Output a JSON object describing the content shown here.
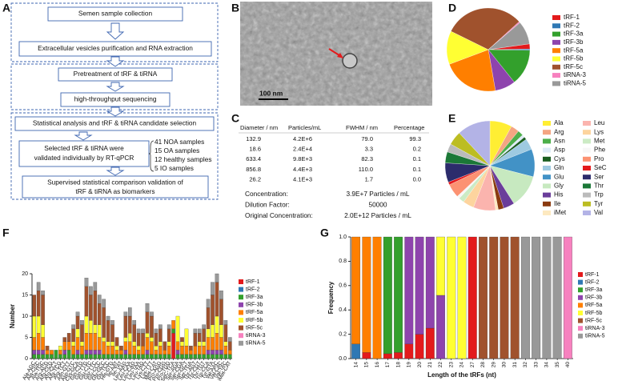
{
  "panel_labels": [
    "A",
    "B",
    "C",
    "D",
    "E",
    "F",
    "G"
  ],
  "flowchart": {
    "steps": [
      "Semen sample collection",
      "Extracellular vesicles purification and RNA extraction",
      "Pretreatment of tRF & tiRNA",
      "high-throughput sequencing",
      "Statistical analysis and tRF & tiRNA candidate selection"
    ],
    "validation": [
      "Selected tRF & tiRNA were",
      "validated individually  by RT-qPCR"
    ],
    "samples": [
      "41 NOA samples",
      "15 OA samples",
      "12 healthy samples",
      "5 IO samples"
    ],
    "conclusion": [
      "Supervised statistical comparison validation of",
      "tRF & tiRNA as biomarkers"
    ]
  },
  "micrograph": {
    "scale_bar": "100 nm"
  },
  "table": {
    "header": [
      "Diameter / nm",
      "Particles/mL",
      "FWHM / nm",
      "Percentage"
    ],
    "rows": [
      [
        "132.9",
        "4.2E+6",
        "79.0",
        "99.3"
      ],
      [
        "18.6",
        "2.4E+4",
        "3.3",
        "0.2"
      ],
      [
        "633.4",
        "9.8E+3",
        "82.3",
        "0.1"
      ],
      [
        "856.8",
        "4.4E+3",
        "110.0",
        "0.1"
      ],
      [
        "26.2",
        "4.1E+3",
        "1.7",
        "0.0"
      ]
    ],
    "summary": [
      [
        "Concentration:",
        "3.9E+7 Particles / mL"
      ],
      [
        "Dilution Factor:",
        "50000"
      ],
      [
        "Original Concentration:",
        "2.0E+12 Particles / mL"
      ]
    ]
  },
  "chart_data": [
    {
      "type": "pie",
      "categories": [
        "tRF-1",
        "tRF-2",
        "tRF-3a",
        "tRF-3b",
        "tRF-5a",
        "tRF-5b",
        "tRF-5c",
        "tiRNA-3",
        "tiRNA-5"
      ],
      "values": [
        2,
        0.5,
        14,
        8,
        22,
        13,
        31,
        0.5,
        9
      ],
      "colors": [
        "#e31a1c",
        "#2f78b4",
        "#33a02c",
        "#8e44ad",
        "#ff7f00",
        "#ffff33",
        "#a0522d",
        "#f781bf",
        "#999999"
      ]
    },
    {
      "type": "pie",
      "categories": [
        "Ala",
        "Arg",
        "Asn",
        "Asp",
        "Cys",
        "Gln",
        "Glu",
        "Gly",
        "His",
        "Ile",
        "iMet",
        "Leu",
        "Lys",
        "Met",
        "Phe",
        "Pro",
        "SeC",
        "Ser",
        "Thr",
        "Trp",
        "Tyr",
        "Val"
      ],
      "values": [
        8,
        3,
        2,
        1,
        1,
        4,
        10,
        12,
        4,
        2,
        1,
        8,
        4,
        2,
        1,
        5,
        1,
        7,
        4,
        3,
        5,
        12
      ],
      "colors": [
        "#ffee33",
        "#f4a582",
        "#4daf4a",
        "#deebf7",
        "#1b5e20",
        "#9ecae1",
        "#4292c6",
        "#c7e9c0",
        "#6a3d9a",
        "#8b3a0f",
        "#fde9c0",
        "#fbb4ae",
        "#fdd49e",
        "#ccebc5",
        "#f7f7f7",
        "#fc9272",
        "#e41a1c",
        "#2c2c6c",
        "#1b7837",
        "#bbbbbb",
        "#bcbd22",
        "#b3b3e6"
      ]
    },
    {
      "type": "bar",
      "stacked": true,
      "y_label": "Number",
      "categories": [
        "Ala-AGC",
        "Ala-CGC",
        "Ala-TGC",
        "Arg-ACG",
        "Arg-CCG",
        "Arg-CCT",
        "Arg-TCG",
        "Arg-TCT",
        "Asn-GTT",
        "Asp-GTC",
        "Cys-GCA",
        "Gln-CTG",
        "Gln-TTG",
        "Glu-CTC",
        "Glu-TTC",
        "Gly-CCC",
        "Gly-GCC",
        "Gly-TCC",
        "His-GTG",
        "Ile-AAT",
        "Ile-TAT",
        "Leu-AAG",
        "Leu-CAA",
        "Leu-CAG",
        "Leu-TAA",
        "Leu-TAG",
        "Lys-CTT",
        "Lys-TTT",
        "Met-CAT",
        "Pro-AGG",
        "Pro-CGG",
        "Pro-TGG",
        "SeC-TCA",
        "Ser-AGA",
        "Ser-CGA",
        "Ser-GCT",
        "Ser-TGA",
        "Thr-AGT",
        "Thr-CGT",
        "Thr-TGT",
        "Trp-CCA",
        "Tyr-GTA",
        "Val-AAC",
        "Val-CAC",
        "Val-TAC",
        "iMet-CAT"
      ],
      "series": [
        {
          "name": "tRF-1",
          "color": "#e31a1c",
          "values": [
            0,
            0,
            0,
            0,
            0,
            0,
            0,
            0,
            0,
            0,
            0,
            0,
            0,
            0,
            0,
            0,
            0,
            0,
            0,
            0,
            0,
            0,
            0,
            0,
            0,
            0,
            0,
            0,
            0,
            0,
            0,
            0,
            6,
            0,
            0,
            0,
            0,
            0,
            0,
            0,
            0,
            0,
            0,
            0,
            0,
            0
          ]
        },
        {
          "name": "tRF-2",
          "color": "#2f78b4",
          "values": [
            0,
            0,
            0,
            0,
            0,
            0,
            0,
            0,
            0,
            0,
            0,
            0,
            0,
            0,
            0,
            0,
            0,
            0,
            0,
            0,
            0,
            0,
            0,
            0,
            0,
            0,
            0,
            0,
            0,
            0,
            0,
            0,
            0,
            0,
            0,
            0,
            0,
            0,
            0,
            0,
            0,
            0,
            0,
            0,
            0,
            0
          ]
        },
        {
          "name": "tRF-3a",
          "color": "#33a02c",
          "values": [
            1,
            1,
            1,
            1,
            1,
            2,
            1,
            1,
            2,
            1,
            1,
            1,
            1,
            1,
            1,
            1,
            1,
            1,
            1,
            1,
            1,
            1,
            1,
            1,
            1,
            1,
            1,
            1,
            1,
            1,
            1,
            1,
            1,
            1,
            1,
            1,
            1,
            1,
            1,
            1,
            1,
            1,
            1,
            1,
            1,
            1
          ]
        },
        {
          "name": "tRF-3b",
          "color": "#8e44ad",
          "values": [
            1,
            1,
            1,
            0,
            0,
            0,
            0,
            1,
            0,
            0,
            1,
            0,
            1,
            1,
            1,
            1,
            0,
            0,
            0,
            0,
            0,
            1,
            0,
            0,
            0,
            0,
            1,
            0,
            0,
            0,
            0,
            0,
            0,
            1,
            0,
            0,
            0,
            0,
            0,
            0,
            1,
            1,
            1,
            1,
            0,
            0
          ]
        },
        {
          "name": "tRF-5a",
          "color": "#ff7f00",
          "values": [
            3,
            4,
            3,
            1,
            1,
            0,
            1,
            2,
            2,
            2,
            3,
            2,
            4,
            4,
            4,
            3,
            3,
            2,
            2,
            1,
            1,
            2,
            3,
            2,
            1,
            2,
            3,
            3,
            1,
            2,
            1,
            2,
            2,
            2,
            2,
            2,
            1,
            2,
            2,
            2,
            3,
            3,
            4,
            3,
            2,
            1
          ]
        },
        {
          "name": "tRF-5b",
          "color": "#ffff33",
          "values": [
            5,
            4,
            3,
            0,
            0,
            0,
            1,
            0,
            0,
            1,
            2,
            1,
            4,
            3,
            2,
            3,
            1,
            1,
            1,
            1,
            0,
            1,
            2,
            1,
            1,
            0,
            1,
            1,
            1,
            1,
            0,
            1,
            0,
            6,
            1,
            4,
            0,
            0,
            1,
            1,
            2,
            3,
            4,
            3,
            1,
            0
          ]
        },
        {
          "name": "tRF-5c",
          "color": "#a0522d",
          "values": [
            5,
            6,
            7,
            1,
            0,
            0,
            0,
            1,
            2,
            3,
            3,
            4,
            7,
            6,
            8,
            5,
            7,
            5,
            4,
            2,
            1,
            5,
            4,
            4,
            3,
            3,
            5,
            5,
            3,
            3,
            2,
            3,
            0,
            0,
            1,
            0,
            1,
            3,
            2,
            3,
            5,
            7,
            8,
            6,
            4,
            2
          ]
        },
        {
          "name": "tiRNA-3",
          "color": "#f781bf",
          "values": [
            0,
            0,
            0,
            0,
            0,
            0,
            0,
            0,
            0,
            0,
            0,
            0,
            0,
            0,
            0,
            0,
            0,
            0,
            0,
            0,
            0,
            0,
            0,
            0,
            0,
            0,
            0,
            0,
            0,
            0,
            0,
            0,
            0,
            0,
            0,
            0,
            0,
            0,
            0,
            0,
            0,
            0,
            0,
            0,
            0,
            0
          ]
        },
        {
          "name": "tiRNA-5",
          "color": "#999999",
          "values": [
            0,
            2,
            1,
            0,
            0,
            0,
            0,
            0,
            0,
            1,
            1,
            1,
            2,
            2,
            2,
            2,
            2,
            1,
            1,
            0,
            0,
            1,
            2,
            1,
            1,
            1,
            2,
            1,
            1,
            1,
            0,
            1,
            0,
            0,
            0,
            0,
            0,
            1,
            1,
            1,
            2,
            3,
            2,
            2,
            1,
            1
          ]
        }
      ],
      "ylim": [
        0,
        20
      ],
      "yticks": [
        0,
        5,
        10,
        15,
        20
      ],
      "legend": "right"
    },
    {
      "type": "bar",
      "stacked": true,
      "x_label": "Length of the tRFs (nt)",
      "y_label": "Frequency",
      "categories": [
        "14",
        "15",
        "16",
        "17",
        "18",
        "19",
        "20",
        "21",
        "22",
        "23",
        "24",
        "27",
        "28",
        "29",
        "30",
        "31",
        "32",
        "33",
        "34",
        "35",
        "40"
      ],
      "series": [
        {
          "name": "tRF-1",
          "color": "#e31a1c",
          "values": [
            0,
            0.05,
            0,
            0.04,
            0.05,
            0.12,
            0.2,
            0.25,
            0,
            0,
            0,
            1,
            0,
            0,
            0,
            0,
            0,
            0,
            0,
            0,
            0
          ]
        },
        {
          "name": "tRF-2",
          "color": "#2f78b4",
          "values": [
            0.12,
            0,
            0,
            0,
            0,
            0,
            0,
            0,
            0,
            0,
            0,
            0,
            0,
            0,
            0,
            0,
            0,
            0,
            0,
            0,
            0
          ]
        },
        {
          "name": "tRF-3a",
          "color": "#33a02c",
          "values": [
            0,
            0,
            0,
            0.96,
            0.95,
            0,
            0,
            0,
            0,
            0,
            0,
            0,
            0,
            0,
            0,
            0,
            0,
            0,
            0,
            0,
            0
          ]
        },
        {
          "name": "tRF-3b",
          "color": "#8e44ad",
          "values": [
            0,
            0,
            0,
            0,
            0,
            0.88,
            0.8,
            0.75,
            0.52,
            0,
            0,
            0,
            0,
            0,
            0,
            0,
            0,
            0,
            0,
            0,
            0
          ]
        },
        {
          "name": "tRF-5a",
          "color": "#ff7f00",
          "values": [
            0.88,
            0.95,
            1,
            0,
            0,
            0,
            0,
            0,
            0,
            0,
            0,
            0,
            0,
            0,
            0,
            0,
            0,
            0,
            0,
            0,
            0
          ]
        },
        {
          "name": "tRF-5b",
          "color": "#ffff33",
          "values": [
            0,
            0,
            0,
            0,
            0,
            0,
            0,
            0,
            0.48,
            1,
            1,
            0,
            0,
            0,
            0,
            0,
            0,
            0,
            0,
            0,
            0
          ]
        },
        {
          "name": "tRF-5c",
          "color": "#a0522d",
          "values": [
            0,
            0,
            0,
            0,
            0,
            0,
            0,
            0,
            0,
            0,
            0,
            0,
            1,
            1,
            1,
            1,
            0,
            0,
            0,
            0,
            0
          ]
        },
        {
          "name": "tiRNA-3",
          "color": "#f781bf",
          "values": [
            0,
            0,
            0,
            0,
            0,
            0,
            0,
            0,
            0,
            0,
            0,
            0,
            0,
            0,
            0,
            0,
            0,
            0,
            0,
            0,
            1
          ]
        },
        {
          "name": "tiRNA-5",
          "color": "#999999",
          "values": [
            0,
            0,
            0,
            0,
            0,
            0,
            0,
            0,
            0,
            0,
            0,
            0,
            0,
            0,
            0,
            0,
            1,
            1,
            1,
            1,
            0
          ]
        }
      ],
      "ylim": [
        0,
        1
      ],
      "yticks": [
        {
          "value": 0,
          "label": "0.0"
        },
        0.2,
        0.4,
        0.6,
        0.8,
        {
          "value": 1,
          "label": "1.0"
        }
      ],
      "legend": "right"
    }
  ]
}
